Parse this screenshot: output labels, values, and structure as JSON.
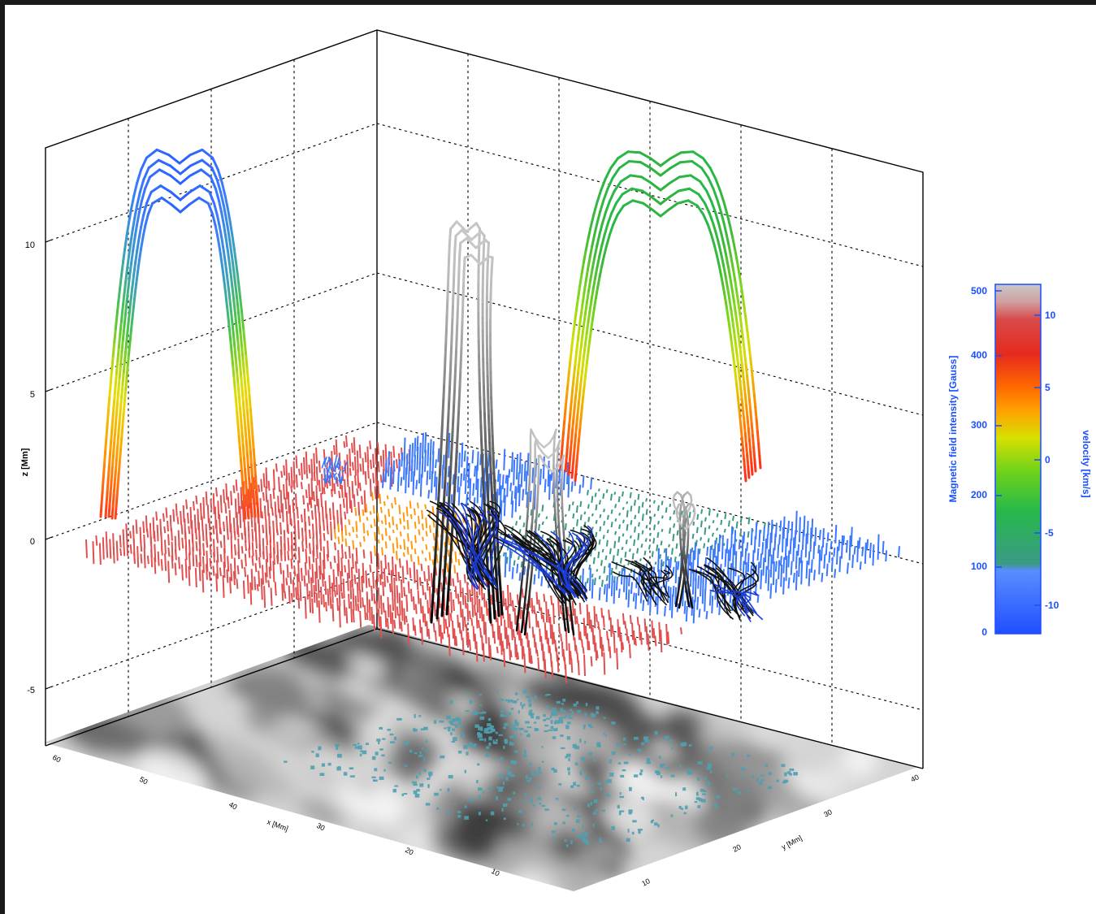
{
  "chart_data": {
    "type": "3d-field-line-plot",
    "axes": {
      "z": {
        "label": "z [Mm]",
        "ticks": [
          "10",
          "5",
          "0",
          "-5"
        ],
        "tick_values": [
          10,
          5,
          0,
          -5
        ],
        "range": [
          -7,
          13
        ]
      },
      "x": {
        "label": "x [Mm]",
        "ticks": [
          "60",
          "50",
          "40",
          "30",
          "20",
          "10"
        ],
        "tick_values": [
          60,
          50,
          40,
          30,
          20,
          10
        ]
      },
      "y": {
        "label": "y [Mm]",
        "ticks": [
          "40",
          "30",
          "20",
          "10"
        ],
        "tick_values": [
          40,
          30,
          20,
          10
        ]
      }
    },
    "grid": true,
    "colorbar": {
      "left_label": "Magnetic field intensity [Gauss]",
      "left_ticks": [
        "500",
        "400",
        "300",
        "200",
        "100",
        "0"
      ],
      "left_tick_values": [
        500,
        400,
        300,
        200,
        100,
        0
      ],
      "right_label": "velocity [km/s]",
      "right_ticks": [
        "10",
        "5",
        "0",
        "-5",
        "-10"
      ],
      "right_tick_values": [
        10,
        5,
        0,
        -5,
        -10
      ],
      "colors": [
        "#1f4fff",
        "#5a8dff",
        "#3a9a86",
        "#27b84a",
        "#6ad21c",
        "#d7e000",
        "#ffa000",
        "#ff6600",
        "#e62a1e",
        "#d84a4a",
        "#d0a0a0",
        "#c8c8c8"
      ]
    },
    "projections": {
      "left_wall_loop": {
        "colormap": "blue-to-red",
        "max_z": 11.8
      },
      "right_wall_loop": {
        "colormap": "green-to-red",
        "max_z": 12.3
      },
      "floor_map": {
        "type": "grayscale-magnetogram",
        "overlay_color": "#4fa0b0"
      }
    },
    "colors": {
      "positive_polarity": "#e05050",
      "negative_polarity": "#3a78ff",
      "mixed_region": "#ff9a10",
      "neutral_region": "#3a9a86",
      "field_lines_dark": "#111111",
      "field_lines_blue": "#1c3cd8",
      "loop_gray": "#a0a0a0",
      "axis_label": "#1a4fff"
    }
  }
}
